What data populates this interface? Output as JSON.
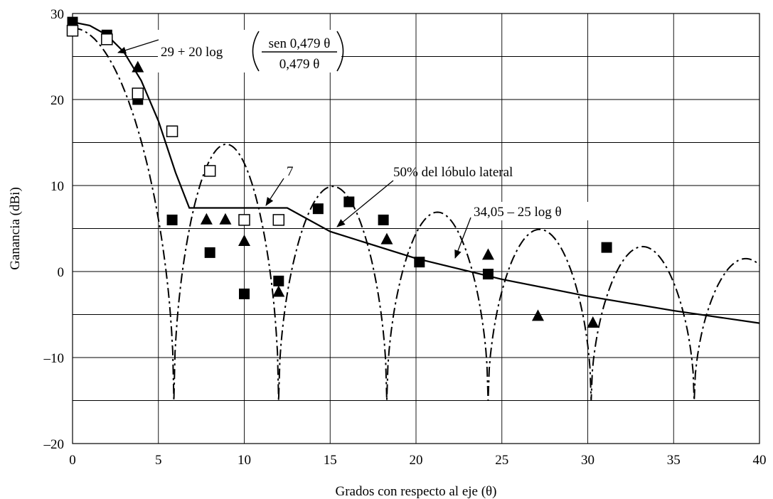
{
  "chart_data": {
    "type": "scatter",
    "xlabel": "Grados con respecto al eje (θ)",
    "ylabel": "Ganancia (dBi)",
    "xlim": [
      0,
      40
    ],
    "ylim": [
      -20,
      30
    ],
    "x_ticks": [
      0,
      5,
      10,
      15,
      20,
      25,
      30,
      35,
      40
    ],
    "y_ticks": [
      -20,
      -10,
      0,
      10,
      20,
      30
    ],
    "x_tick_labels": [
      "0",
      "5",
      "10",
      "15",
      "20",
      "25",
      "30",
      "35",
      "40"
    ],
    "y_tick_labels": [
      "–20",
      "–10",
      "0",
      "10",
      "20",
      "30"
    ],
    "x_grid_step": 5,
    "y_grid_step": 5,
    "grid": true,
    "legend": "none",
    "series": [
      {
        "style": "solid-line",
        "x": [
          0,
          1,
          2,
          3,
          4,
          5,
          6,
          6.8,
          12.5,
          15,
          20,
          25,
          30,
          35,
          40
        ],
        "y": [
          29,
          28.6,
          27.5,
          25.5,
          22.2,
          17.5,
          11.5,
          7.4,
          7.4,
          4.65,
          1.52,
          -0.9,
          -2.88,
          -4.55,
          -6
        ]
      },
      {
        "style": "dash-dot-line",
        "lobes": [
          {
            "start": 0,
            "end": 5.9,
            "peak": 28.3
          },
          {
            "start": 5.9,
            "end": 12.0,
            "peak": 14.8
          },
          {
            "start": 12.0,
            "end": 18.3,
            "peak": 9.9
          },
          {
            "start": 18.3,
            "end": 24.2,
            "peak": 6.9
          },
          {
            "start": 24.2,
            "end": 30.2,
            "peak": 4.9
          },
          {
            "start": 30.2,
            "end": 36.2,
            "peak": 2.9
          },
          {
            "start": 36.2,
            "end": 42.2,
            "peak": 1.5
          }
        ],
        "floor": -15
      },
      {
        "marker": "filled-square",
        "x": [
          0,
          2,
          3.8,
          5.8,
          8,
          10,
          12,
          14.3,
          16.1,
          18.1,
          20.2,
          24.2,
          31.1
        ],
        "y": [
          29,
          27.5,
          20,
          6,
          2.2,
          -2.6,
          -1.1,
          7.3,
          8.1,
          6,
          1.1,
          -0.3,
          2.8
        ]
      },
      {
        "marker": "open-square",
        "x": [
          0,
          2,
          3.8,
          5.8,
          8,
          10,
          12
        ],
        "y": [
          28,
          27,
          20.7,
          16.3,
          11.7,
          6,
          6
        ]
      },
      {
        "marker": "filled-triangle",
        "x": [
          3.8,
          7.8,
          8.9,
          10,
          12,
          18.3,
          24.2,
          27.1,
          30.3
        ],
        "y": [
          23.7,
          6,
          6,
          3.5,
          -2.4,
          3.7,
          1.9,
          -5.2,
          -6
        ]
      }
    ],
    "annotations": {
      "formula_prefix": "29 + 20 log",
      "formula_numerator": "sen 0,479 θ",
      "formula_denominator": "0,479 θ",
      "label_7": "7",
      "label_sidelobe": "50%  del lóbulo lateral",
      "label_envelope": "34,05 – 25 log θ"
    }
  }
}
